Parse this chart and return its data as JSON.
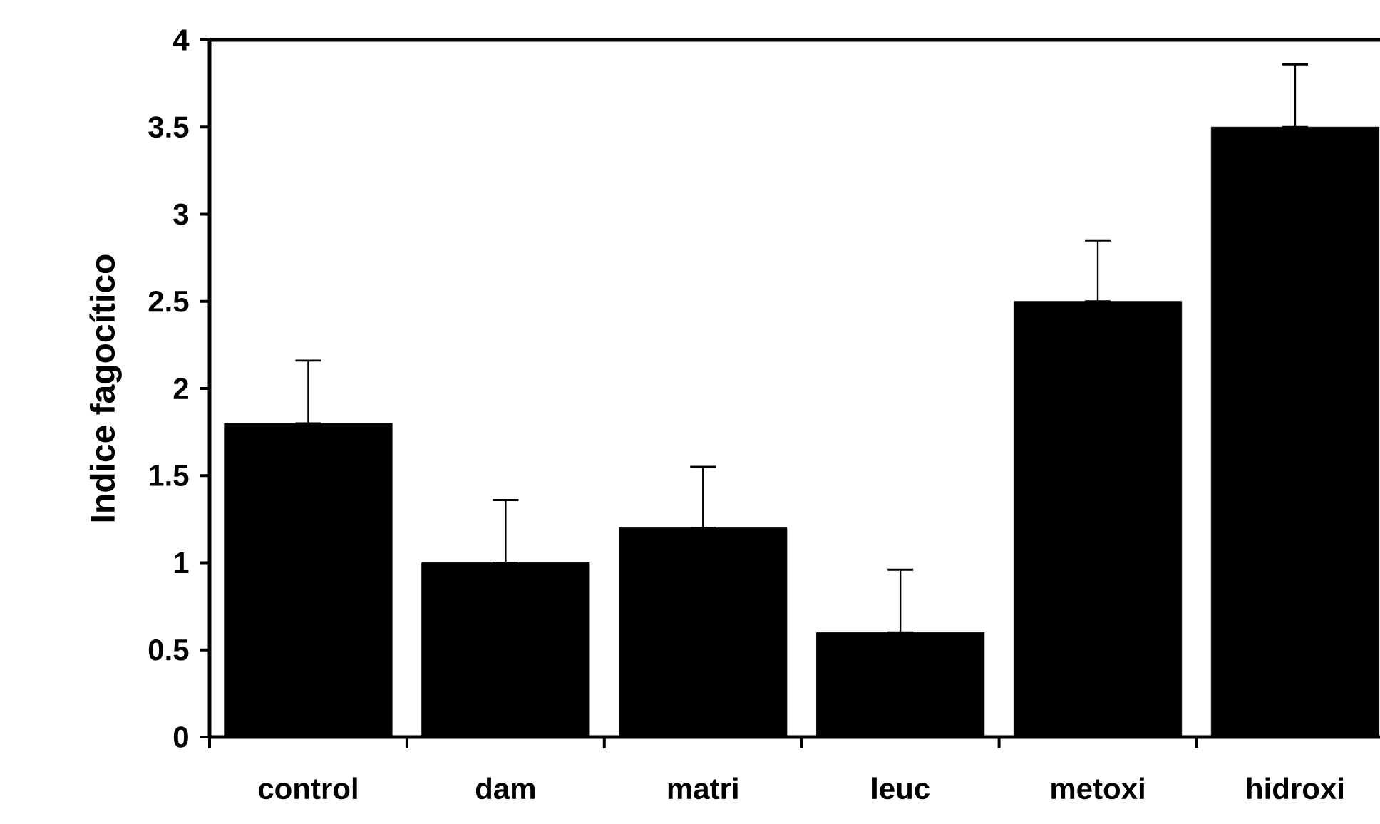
{
  "chart_data": {
    "type": "bar",
    "ylabel": "Indice fagocítico",
    "categories": [
      "control",
      "dam",
      "matri",
      "leuc",
      "metoxi",
      "hidroxi"
    ],
    "values": [
      1.8,
      1.0,
      1.2,
      0.6,
      2.5,
      3.5
    ],
    "errors": [
      [
        1.8,
        2.16
      ],
      [
        1.0,
        1.36
      ],
      [
        1.2,
        1.55
      ],
      [
        0.6,
        0.96
      ],
      [
        2.5,
        2.85
      ],
      [
        3.5,
        3.86
      ]
    ],
    "color": "#000000",
    "ylim": [
      0,
      4
    ],
    "yticks": [
      0,
      0.5,
      1,
      1.5,
      2,
      2.5,
      3,
      3.5,
      4
    ]
  }
}
